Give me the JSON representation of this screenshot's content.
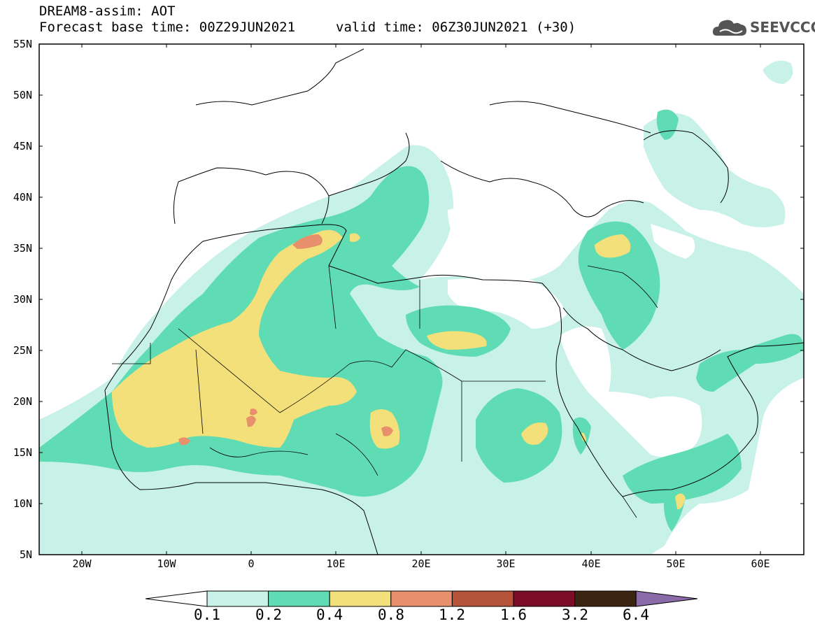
{
  "header": {
    "title": "DREAM8-assim: AOT",
    "base_time": "Forecast base time: 00Z29JUN2021",
    "valid_time": "valid time: 06Z30JUN2021 (+30)",
    "logo_text": "SEEVCCC"
  },
  "map": {
    "lat_labels": [
      "55N",
      "50N",
      "45N",
      "40N",
      "35N",
      "30N",
      "25N",
      "20N",
      "15N",
      "10N",
      "5N"
    ],
    "lon_labels": [
      "20W",
      "10W",
      "0",
      "10E",
      "20E",
      "30E",
      "40E",
      "50E",
      "60E"
    ],
    "extent": {
      "lon_min": -25,
      "lon_max": 65,
      "lat_min": 5,
      "lat_max": 55
    }
  },
  "colorbar": {
    "labels": [
      "0.1",
      "0.2",
      "0.4",
      "0.8",
      "1.2",
      "1.6",
      "3.2",
      "6.4"
    ],
    "colors": [
      "#c8f2e8",
      "#5fdcb4",
      "#f4e07a",
      "#e8906c",
      "#b5543a",
      "#7d0c28",
      "#3c2412",
      "#8a6aa8"
    ]
  }
}
